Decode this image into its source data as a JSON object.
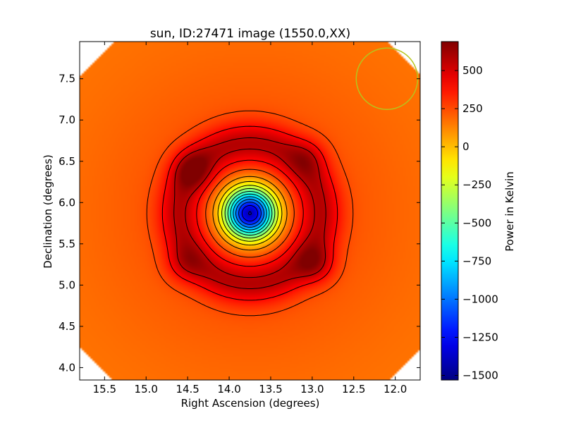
{
  "chart_data": {
    "type": "heatmap",
    "title": "sun, ID:27471 image (1550.0,XX)",
    "xlabel": "Right Ascension (degrees)",
    "ylabel": "Declination (degrees)",
    "xlim": [
      15.8,
      11.7
    ],
    "ylim": [
      3.85,
      7.95
    ],
    "x_ticks": [
      "15.5",
      "15.0",
      "14.5",
      "14.0",
      "13.5",
      "13.0",
      "12.5",
      "12.0"
    ],
    "y_ticks": [
      "4.0",
      "4.5",
      "5.0",
      "5.5",
      "6.0",
      "6.5",
      "7.0",
      "7.5"
    ],
    "colorbar": {
      "label": "Power in Kelvin",
      "range": [
        -1530,
        690
      ],
      "ticks": [
        "500",
        "250",
        "0",
        "−250",
        "−500",
        "−750",
        "−1000",
        "−1250",
        "−1500"
      ],
      "tick_values": [
        500,
        250,
        0,
        -250,
        -500,
        -750,
        -1000,
        -1250,
        -1500
      ],
      "colormap": "jet"
    },
    "center": [
      13.75,
      5.87
    ],
    "dip_min_value": -1500,
    "outer_level_value": 150,
    "peak_lobes": [
      {
        "ra": 14.45,
        "dec": 6.4,
        "value": 650
      },
      {
        "ra": 12.95,
        "dec": 5.25,
        "value": 640
      },
      {
        "ra": 13.05,
        "dec": 6.55,
        "value": 560
      },
      {
        "ra": 14.55,
        "dec": 5.25,
        "value": 560
      }
    ],
    "beam_circle": {
      "ra": 12.1,
      "dec": 7.5,
      "radius_deg": 0.37,
      "color": "#b5c61d"
    },
    "grid": false
  }
}
